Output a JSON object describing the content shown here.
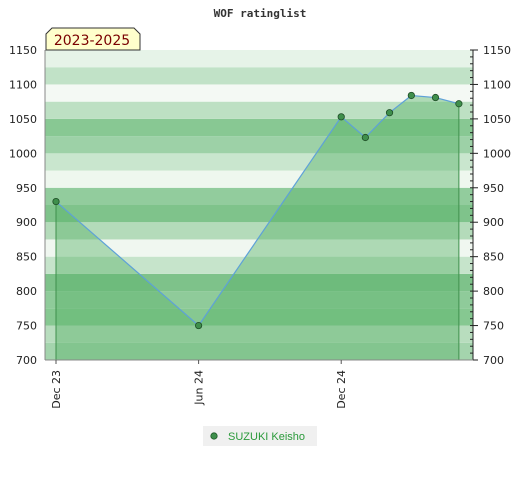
{
  "chart_data": {
    "type": "area",
    "title": "WOF ratinglist",
    "period_badge": "2023-2025",
    "xlabel": "",
    "ylabel": "",
    "ylim": [
      700,
      1150
    ],
    "yticks": [
      700,
      750,
      800,
      850,
      900,
      950,
      1000,
      1050,
      1100,
      1150
    ],
    "x_tick_labels": [
      {
        "label": "Dec 23",
        "date": "2023-12-01"
      },
      {
        "label": "Jun 24",
        "date": "2024-06-01"
      },
      {
        "label": "Dec 24",
        "date": "2024-12-01"
      }
    ],
    "xlim": [
      "2023-12-01",
      "2025-05-05"
    ],
    "legend_position": "bottom-center",
    "grid": true,
    "series": [
      {
        "name": "SUZUKI Keisho",
        "color": "#5ea1d8",
        "fill": "#5cb36a",
        "marker_color": "#3f8f4c",
        "points": [
          {
            "date": "2023-12-01",
            "value": 930
          },
          {
            "date": "2024-06-01",
            "value": 750
          },
          {
            "date": "2024-12-01",
            "value": 1053
          },
          {
            "date": "2025-01-01",
            "value": 1023
          },
          {
            "date": "2025-02-01",
            "value": 1059
          },
          {
            "date": "2025-03-01",
            "value": 1084
          },
          {
            "date": "2025-04-01",
            "value": 1081
          },
          {
            "date": "2025-05-01",
            "value": 1072
          }
        ]
      }
    ]
  }
}
